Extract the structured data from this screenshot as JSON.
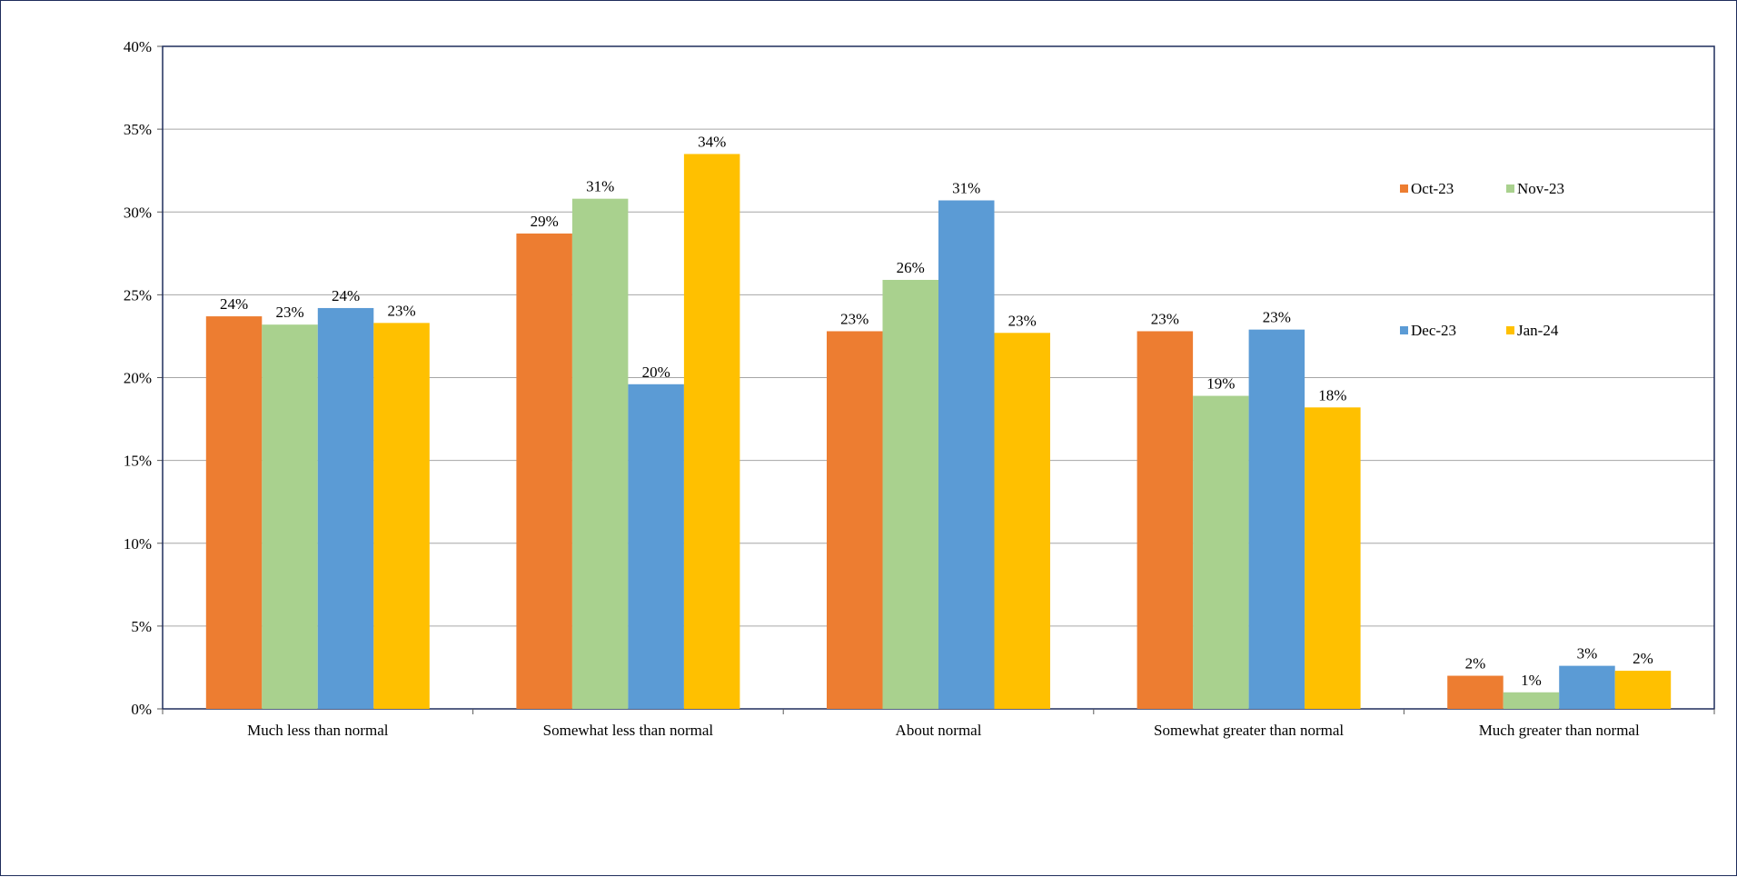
{
  "chart_data": {
    "type": "bar",
    "categories": [
      "Much less than normal",
      "Somewhat less than normal",
      "About normal",
      "Somewhat greater than normal",
      "Much greater than normal"
    ],
    "series": [
      {
        "name": "Oct-23",
        "color": "#ED7D31",
        "values": [
          23.7,
          28.7,
          22.8,
          22.8,
          2.0
        ],
        "labels": [
          "24%",
          "29%",
          "23%",
          "23%",
          "2%"
        ]
      },
      {
        "name": "Nov-23",
        "color": "#A9D18E",
        "values": [
          23.2,
          30.8,
          25.9,
          18.9,
          1.0
        ],
        "labels": [
          "23%",
          "31%",
          "26%",
          "19%",
          "1%"
        ]
      },
      {
        "name": "Dec-23",
        "color": "#5B9BD5",
        "values": [
          24.2,
          19.6,
          30.7,
          22.9,
          2.6
        ],
        "labels": [
          "24%",
          "20%",
          "31%",
          "23%",
          "3%"
        ]
      },
      {
        "name": "Jan-24",
        "color": "#FFC000",
        "values": [
          23.3,
          33.5,
          22.7,
          18.2,
          2.3
        ],
        "labels": [
          "23%",
          "34%",
          "23%",
          "18%",
          "2%"
        ]
      }
    ],
    "ylim": [
      0,
      40
    ],
    "yticks": [
      "0%",
      "5%",
      "10%",
      "15%",
      "20%",
      "25%",
      "30%",
      "35%",
      "40%"
    ],
    "ytick_values": [
      0,
      5,
      10,
      15,
      20,
      25,
      30,
      35,
      40
    ],
    "grid": true,
    "legend_position": "right"
  }
}
